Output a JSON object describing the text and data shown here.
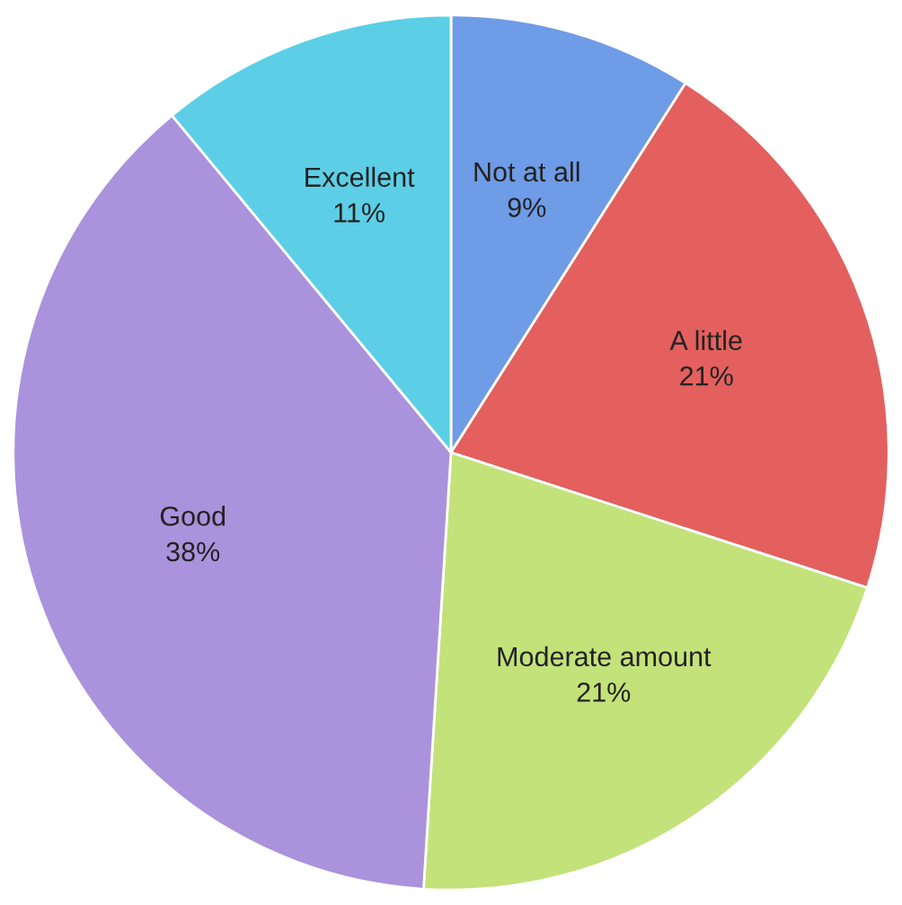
{
  "chart_data": {
    "type": "pie",
    "categories": [
      "Not at all",
      "A little",
      "Moderate amount",
      "Good",
      "Excellent"
    ],
    "values": [
      9,
      21,
      21,
      38,
      11
    ],
    "value_labels": [
      "9%",
      "21%",
      "21%",
      "38%",
      "11%"
    ],
    "colors": [
      "#6f9ce6",
      "#e3605e",
      "#c3e27a",
      "#ab92dc",
      "#5ccfe6"
    ],
    "legend": false
  }
}
